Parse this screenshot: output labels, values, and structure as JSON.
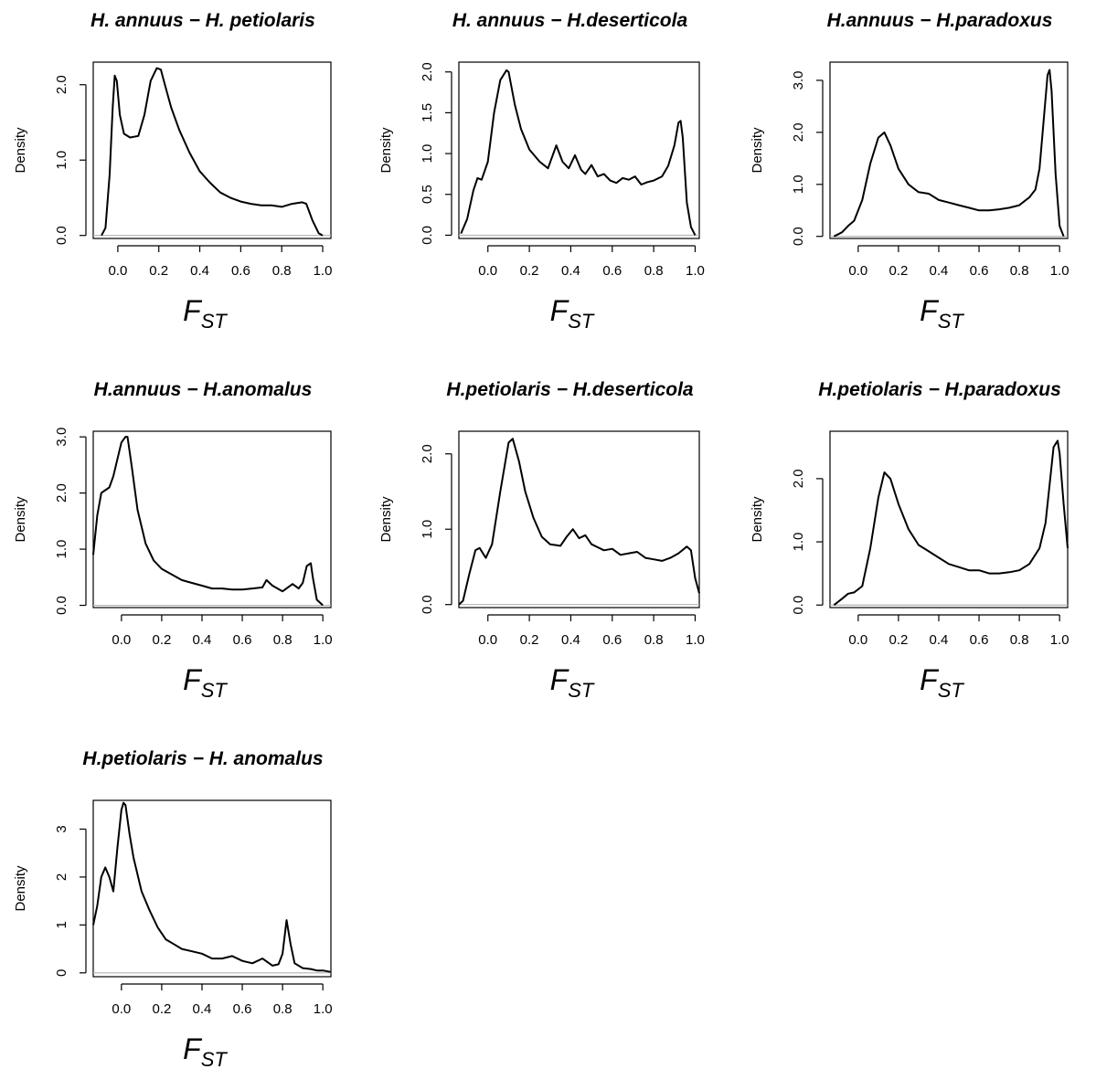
{
  "chart_data": [
    {
      "type": "line",
      "title": "H. annuus − H. petiolaris",
      "xlabel": "F",
      "xlabel_sub": "ST",
      "ylabel": "Density",
      "xlim": [
        -0.12,
        1.04
      ],
      "ylim": [
        -0.04,
        2.3
      ],
      "xticks": [
        "0.0",
        "0.2",
        "0.4",
        "0.6",
        "0.8",
        "1.0"
      ],
      "yticks": [
        "0.0",
        "1.0",
        "2.0"
      ],
      "grid": false,
      "series": [
        {
          "x": [
            -0.08,
            -0.06,
            -0.04,
            -0.025,
            -0.015,
            -0.005,
            0.01,
            0.03,
            0.06,
            0.1,
            0.13,
            0.16,
            0.19,
            0.21,
            0.23,
            0.26,
            0.3,
            0.35,
            0.4,
            0.45,
            0.5,
            0.55,
            0.6,
            0.65,
            0.7,
            0.75,
            0.8,
            0.85,
            0.9,
            0.92,
            0.95,
            0.98,
            1.0
          ],
          "y": [
            0.0,
            0.1,
            0.8,
            1.7,
            2.12,
            2.05,
            1.6,
            1.35,
            1.3,
            1.32,
            1.6,
            2.05,
            2.22,
            2.2,
            2.0,
            1.7,
            1.4,
            1.1,
            0.85,
            0.7,
            0.57,
            0.5,
            0.45,
            0.42,
            0.4,
            0.4,
            0.38,
            0.42,
            0.44,
            0.42,
            0.2,
            0.03,
            0.0
          ]
        }
      ]
    },
    {
      "type": "line",
      "title": "H. annuus − H.deserticola",
      "xlabel": "F",
      "xlabel_sub": "ST",
      "ylabel": "Density",
      "xlim": [
        -0.14,
        1.02
      ],
      "ylim": [
        -0.04,
        2.12
      ],
      "xticks": [
        "0.0",
        "0.2",
        "0.4",
        "0.6",
        "0.8",
        "1.0"
      ],
      "yticks": [
        "0.0",
        "0.5",
        "1.0",
        "1.5",
        "2.0"
      ],
      "grid": false,
      "series": [
        {
          "x": [
            -0.13,
            -0.1,
            -0.07,
            -0.05,
            -0.03,
            0.0,
            0.03,
            0.06,
            0.09,
            0.1,
            0.13,
            0.16,
            0.2,
            0.25,
            0.29,
            0.33,
            0.36,
            0.39,
            0.42,
            0.45,
            0.47,
            0.5,
            0.53,
            0.56,
            0.59,
            0.62,
            0.65,
            0.68,
            0.71,
            0.74,
            0.77,
            0.8,
            0.84,
            0.87,
            0.9,
            0.92,
            0.93,
            0.94,
            0.96,
            0.98,
            1.0
          ],
          "y": [
            0.02,
            0.2,
            0.55,
            0.7,
            0.68,
            0.9,
            1.5,
            1.9,
            2.02,
            2.0,
            1.6,
            1.3,
            1.05,
            0.9,
            0.82,
            1.1,
            0.9,
            0.82,
            0.98,
            0.8,
            0.75,
            0.86,
            0.72,
            0.75,
            0.67,
            0.64,
            0.7,
            0.68,
            0.72,
            0.62,
            0.65,
            0.67,
            0.72,
            0.85,
            1.1,
            1.38,
            1.4,
            1.2,
            0.4,
            0.1,
            0.0
          ]
        }
      ]
    },
    {
      "type": "line",
      "title": "H.annuus − H.paradoxus",
      "xlabel": "F",
      "xlabel_sub": "ST",
      "ylabel": "Density",
      "xlim": [
        -0.14,
        1.04
      ],
      "ylim": [
        -0.04,
        3.35
      ],
      "xticks": [
        "0.0",
        "0.2",
        "0.4",
        "0.6",
        "0.8",
        "1.0"
      ],
      "yticks": [
        "0.0",
        "1.0",
        "2.0",
        "3.0"
      ],
      "grid": false,
      "series": [
        {
          "x": [
            -0.12,
            -0.08,
            -0.05,
            -0.02,
            0.02,
            0.06,
            0.1,
            0.13,
            0.16,
            0.2,
            0.25,
            0.3,
            0.35,
            0.4,
            0.45,
            0.5,
            0.55,
            0.6,
            0.65,
            0.7,
            0.75,
            0.8,
            0.85,
            0.88,
            0.9,
            0.92,
            0.94,
            0.95,
            0.96,
            0.98,
            1.0,
            1.02
          ],
          "y": [
            0.0,
            0.08,
            0.2,
            0.3,
            0.7,
            1.4,
            1.9,
            2.0,
            1.75,
            1.3,
            1.0,
            0.85,
            0.82,
            0.7,
            0.65,
            0.6,
            0.55,
            0.5,
            0.5,
            0.52,
            0.55,
            0.6,
            0.75,
            0.9,
            1.3,
            2.2,
            3.1,
            3.2,
            2.8,
            1.2,
            0.2,
            0.0
          ]
        }
      ]
    },
    {
      "type": "line",
      "title": "H.annuus − H.anomalus",
      "xlabel": "F",
      "xlabel_sub": "ST",
      "ylabel": "Density",
      "xlim": [
        -0.14,
        1.04
      ],
      "ylim": [
        -0.04,
        3.1
      ],
      "xticks": [
        "0.0",
        "0.2",
        "0.4",
        "0.6",
        "0.8",
        "1.0"
      ],
      "yticks": [
        "0.0",
        "1.0",
        "2.0",
        "3.0"
      ],
      "grid": false,
      "series": [
        {
          "x": [
            -0.14,
            -0.12,
            -0.1,
            -0.08,
            -0.06,
            -0.04,
            -0.02,
            0.0,
            0.02,
            0.03,
            0.05,
            0.08,
            0.12,
            0.16,
            0.2,
            0.25,
            0.3,
            0.35,
            0.4,
            0.45,
            0.5,
            0.55,
            0.6,
            0.65,
            0.7,
            0.72,
            0.75,
            0.8,
            0.85,
            0.88,
            0.9,
            0.92,
            0.94,
            0.95,
            0.97,
            1.0
          ],
          "y": [
            0.9,
            1.6,
            2.0,
            2.05,
            2.1,
            2.3,
            2.6,
            2.9,
            3.0,
            3.0,
            2.5,
            1.7,
            1.1,
            0.8,
            0.65,
            0.55,
            0.45,
            0.4,
            0.35,
            0.3,
            0.3,
            0.28,
            0.28,
            0.3,
            0.32,
            0.45,
            0.35,
            0.25,
            0.38,
            0.3,
            0.4,
            0.7,
            0.75,
            0.5,
            0.1,
            0.0
          ]
        }
      ]
    },
    {
      "type": "line",
      "title": "H.petiolaris − H.deserticola",
      "xlabel": "F",
      "xlabel_sub": "ST",
      "ylabel": "Density",
      "xlim": [
        -0.14,
        1.02
      ],
      "ylim": [
        -0.04,
        2.3
      ],
      "xticks": [
        "0.0",
        "0.2",
        "0.4",
        "0.6",
        "0.8",
        "1.0"
      ],
      "yticks": [
        "0.0",
        "1.0",
        "2.0"
      ],
      "grid": false,
      "series": [
        {
          "x": [
            -0.14,
            -0.12,
            -0.09,
            -0.06,
            -0.04,
            -0.01,
            0.02,
            0.06,
            0.1,
            0.12,
            0.15,
            0.18,
            0.22,
            0.26,
            0.3,
            0.35,
            0.38,
            0.41,
            0.44,
            0.47,
            0.5,
            0.53,
            0.56,
            0.6,
            0.64,
            0.68,
            0.72,
            0.76,
            0.8,
            0.84,
            0.88,
            0.92,
            0.96,
            0.98,
            1.0,
            1.02
          ],
          "y": [
            0.0,
            0.05,
            0.4,
            0.72,
            0.75,
            0.62,
            0.8,
            1.5,
            2.15,
            2.2,
            1.9,
            1.5,
            1.15,
            0.9,
            0.8,
            0.78,
            0.9,
            1.0,
            0.88,
            0.92,
            0.8,
            0.76,
            0.72,
            0.74,
            0.66,
            0.68,
            0.7,
            0.62,
            0.6,
            0.58,
            0.62,
            0.68,
            0.77,
            0.72,
            0.35,
            0.15
          ]
        }
      ]
    },
    {
      "type": "line",
      "title": "H.petiolaris − H.paradoxus",
      "xlabel": "F",
      "xlabel_sub": "ST",
      "ylabel": "Density",
      "xlim": [
        -0.14,
        1.04
      ],
      "ylim": [
        -0.04,
        2.75
      ],
      "xticks": [
        "0.0",
        "0.2",
        "0.4",
        "0.6",
        "0.8",
        "1.0"
      ],
      "yticks": [
        "0.0",
        "1.0",
        "2.0"
      ],
      "grid": false,
      "series": [
        {
          "x": [
            -0.12,
            -0.08,
            -0.05,
            -0.02,
            0.02,
            0.06,
            0.1,
            0.13,
            0.16,
            0.2,
            0.25,
            0.3,
            0.35,
            0.4,
            0.45,
            0.5,
            0.55,
            0.6,
            0.65,
            0.7,
            0.75,
            0.8,
            0.85,
            0.9,
            0.93,
            0.95,
            0.97,
            0.99,
            1.0,
            1.02,
            1.04
          ],
          "y": [
            0.0,
            0.1,
            0.18,
            0.2,
            0.3,
            0.9,
            1.7,
            2.1,
            2.0,
            1.6,
            1.2,
            0.95,
            0.85,
            0.75,
            0.65,
            0.6,
            0.55,
            0.55,
            0.5,
            0.5,
            0.52,
            0.55,
            0.65,
            0.9,
            1.3,
            1.9,
            2.5,
            2.6,
            2.4,
            1.6,
            0.9
          ]
        }
      ]
    },
    {
      "type": "line",
      "title": "H.petiolaris − H. anomalus",
      "xlabel": "F",
      "xlabel_sub": "ST",
      "ylabel": "Density",
      "xlim": [
        -0.14,
        1.04
      ],
      "ylim": [
        -0.08,
        3.6
      ],
      "xticks": [
        "0.0",
        "0.2",
        "0.4",
        "0.6",
        "0.8",
        "1.0"
      ],
      "yticks": [
        "0",
        "1",
        "2",
        "3"
      ],
      "grid": false,
      "series": [
        {
          "x": [
            -0.14,
            -0.12,
            -0.1,
            -0.08,
            -0.06,
            -0.04,
            -0.02,
            0.0,
            0.01,
            0.02,
            0.04,
            0.06,
            0.1,
            0.14,
            0.18,
            0.22,
            0.26,
            0.3,
            0.35,
            0.4,
            0.45,
            0.5,
            0.55,
            0.6,
            0.65,
            0.7,
            0.75,
            0.78,
            0.8,
            0.82,
            0.84,
            0.86,
            0.9,
            0.94,
            0.97,
            1.0,
            1.04
          ],
          "y": [
            1.0,
            1.4,
            2.0,
            2.2,
            2.0,
            1.7,
            2.6,
            3.4,
            3.55,
            3.5,
            2.9,
            2.4,
            1.7,
            1.3,
            0.95,
            0.7,
            0.6,
            0.5,
            0.45,
            0.4,
            0.3,
            0.3,
            0.35,
            0.25,
            0.2,
            0.3,
            0.15,
            0.18,
            0.4,
            1.1,
            0.6,
            0.2,
            0.1,
            0.08,
            0.05,
            0.05,
            0.02
          ]
        }
      ]
    }
  ]
}
